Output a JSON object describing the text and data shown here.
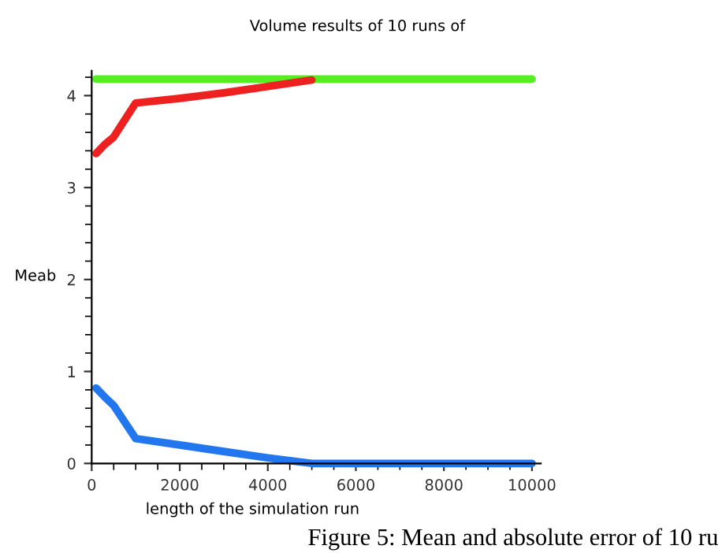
{
  "chart_data": {
    "type": "line",
    "title": "Volume results of 10 runs of",
    "xlabel": "length of the simulation run",
    "ylabel": "Meab",
    "annotations": [
      "Figure 5: Mean and absolute error of 10 ru"
    ],
    "series": [
      {
        "color": "#55ee22",
        "x": [
          100,
          10000
        ],
        "values": [
          4.18,
          4.18
        ]
      },
      {
        "color": "#ee2020",
        "x": [
          100,
          300,
          500,
          1000,
          2000,
          3000,
          4000,
          5000
        ],
        "values": [
          3.37,
          3.47,
          3.55,
          3.92,
          3.97,
          4.03,
          4.1,
          4.17
        ]
      },
      {
        "color": "#2277ee",
        "x": [
          100,
          300,
          500,
          1000,
          2000,
          3000,
          4000,
          5000,
          10000
        ],
        "values": [
          0.82,
          0.72,
          0.63,
          0.27,
          0.2,
          0.13,
          0.06,
          0.0,
          0.0
        ]
      }
    ],
    "xlim": [
      0,
      10200
    ],
    "ylim": [
      0,
      4.27
    ],
    "xticks": [
      0,
      2000,
      4000,
      6000,
      8000,
      10000
    ],
    "yticks": [
      0,
      1,
      2,
      3,
      4
    ],
    "grid": false,
    "legend": false,
    "marker": "none",
    "line_style": "solid"
  }
}
